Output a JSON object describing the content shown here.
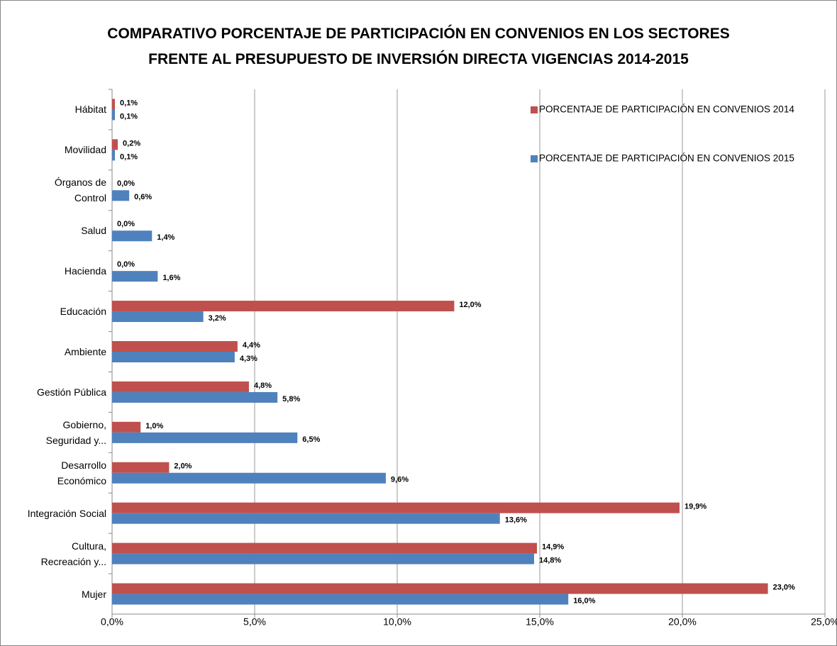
{
  "chart_data": {
    "type": "barh",
    "title": "COMPARATIVO PORCENTAJE DE PARTICIPACIÓN EN CONVENIOS EN LOS SECTORES\nFRENTE AL PRESUPUESTO DE INVERSIÓN DIRECTA VIGENCIAS 2014-2015",
    "categories": [
      "Hábitat",
      "Movilidad",
      "Órganos de\nControl",
      "Salud",
      "Hacienda",
      "Educación",
      "Ambiente",
      "Gestión Pública",
      "Gobierno,\nSeguridad y...",
      "Desarrollo\nEconómico",
      "Integración Social",
      "Cultura,\nRecreación y...",
      "Mujer"
    ],
    "series": [
      {
        "name": "PORCENTAJE DE PARTICIPACIÓN EN CONVENIOS 2014",
        "color": "#c0504d",
        "values": [
          0.1,
          0.2,
          0.0,
          0.0,
          0.0,
          12.0,
          4.4,
          4.8,
          1.0,
          2.0,
          19.9,
          14.9,
          23.0
        ],
        "value_labels": [
          "0,1%",
          "0,2%",
          "0,0%",
          "0,0%",
          "0,0%",
          "12,0%",
          "4,4%",
          "4,8%",
          "1,0%",
          "2,0%",
          "19,9%",
          "14,9%",
          "23,0%"
        ]
      },
      {
        "name": "PORCENTAJE DE PARTICIPACIÓN EN CONVENIOS 2015",
        "color": "#4f81bd",
        "values": [
          0.1,
          0.1,
          0.6,
          1.4,
          1.6,
          3.2,
          4.3,
          5.8,
          6.5,
          9.6,
          13.6,
          14.8,
          16.0
        ],
        "value_labels": [
          "0,1%",
          "0,1%",
          "0,6%",
          "1,4%",
          "1,6%",
          "3,2%",
          "4,3%",
          "5,8%",
          "6,5%",
          "9,6%",
          "13,6%",
          "14,8%",
          "16,0%"
        ]
      }
    ],
    "xlim": [
      0,
      25
    ],
    "xticks": [
      {
        "value": 0,
        "label": "0,0%"
      },
      {
        "value": 5,
        "label": "5,0%"
      },
      {
        "value": 10,
        "label": "10,0%"
      },
      {
        "value": 15,
        "label": "15,0%"
      },
      {
        "value": 20,
        "label": "20,0%"
      },
      {
        "value": 25,
        "label": "25,0%"
      }
    ],
    "grid": true,
    "legend": "top-right"
  }
}
